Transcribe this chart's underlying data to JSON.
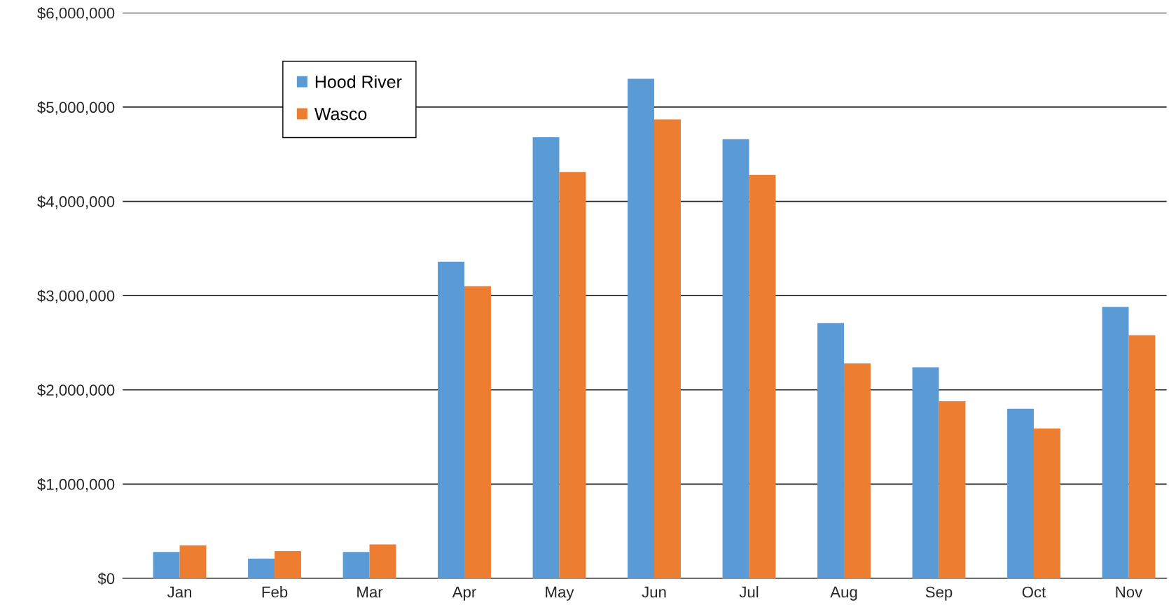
{
  "chart_data": {
    "type": "bar",
    "categories": [
      "Jan",
      "Feb",
      "Mar",
      "Apr",
      "May",
      "Jun",
      "Jul",
      "Aug",
      "Sep",
      "Oct",
      "Nov"
    ],
    "series": [
      {
        "name": "Hood River",
        "color": "#5b9bd5",
        "values": [
          280000,
          210000,
          280000,
          3360000,
          4680000,
          5300000,
          4660000,
          2710000,
          2240000,
          1800000,
          2880000
        ]
      },
      {
        "name": "Wasco",
        "color": "#ed7d31",
        "values": [
          350000,
          290000,
          360000,
          3100000,
          4310000,
          4870000,
          4280000,
          2280000,
          1880000,
          1590000,
          2580000
        ]
      }
    ],
    "ylim": [
      0,
      6000000
    ],
    "yticks": [
      {
        "value": 0,
        "label": "$0"
      },
      {
        "value": 1000000,
        "label": "$1,000,000"
      },
      {
        "value": 2000000,
        "label": "$2,000,000"
      },
      {
        "value": 3000000,
        "label": "$3,000,000"
      },
      {
        "value": 4000000,
        "label": "$4,000,000"
      },
      {
        "value": 5000000,
        "label": "$5,000,000"
      },
      {
        "value": 6000000,
        "label": "$6,000,000"
      }
    ],
    "grid": "y",
    "legend": "top left"
  }
}
